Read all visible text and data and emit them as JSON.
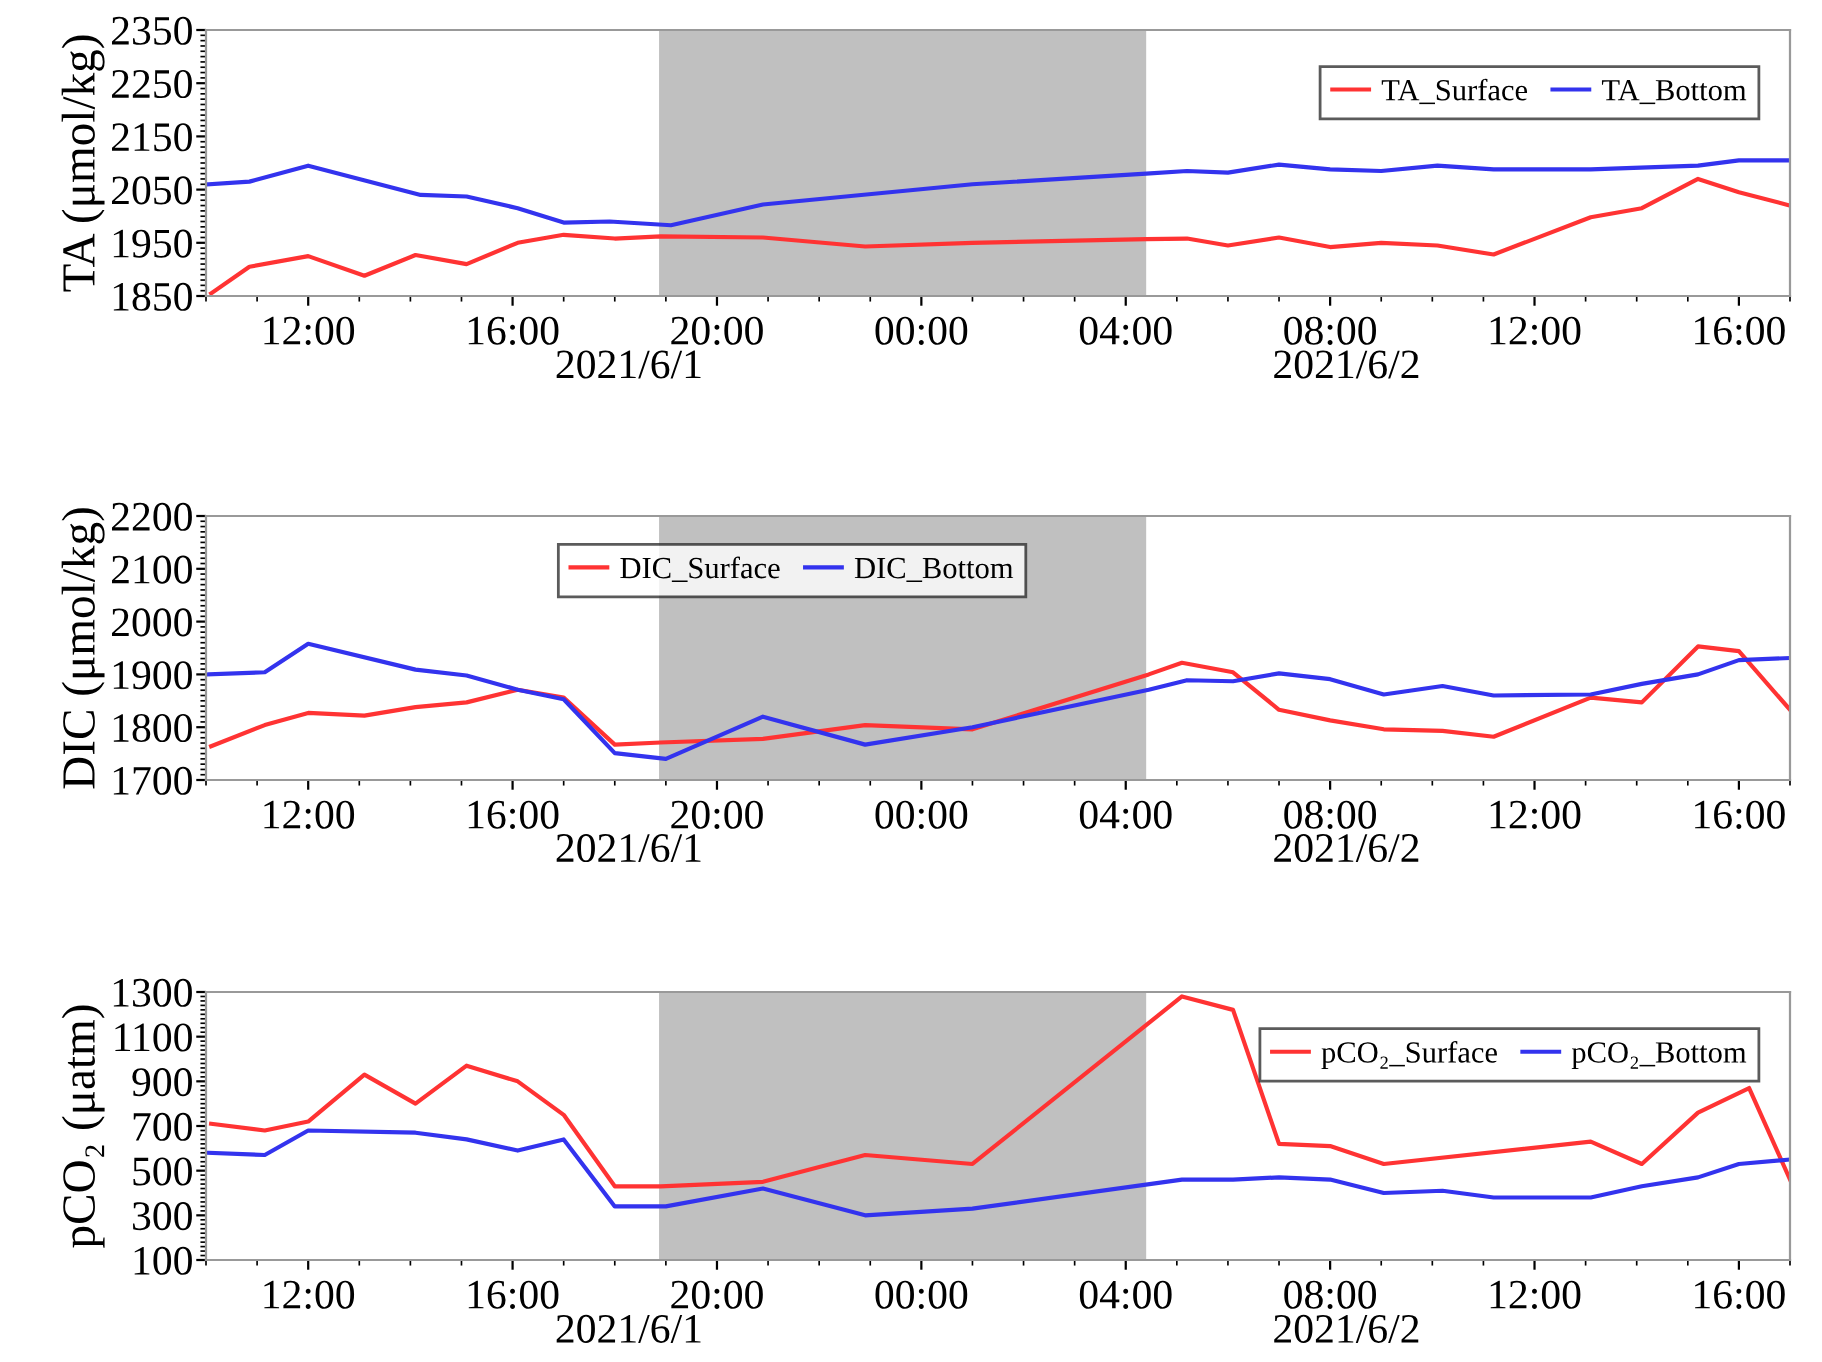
{
  "chart_data": [
    {
      "type": "line",
      "ylabel": "TA (μmol/kg)",
      "xlim": [
        "2021-06-01T10:00",
        "2021-06-02T17:00"
      ],
      "xticks": [
        {
          "value": "2021-06-01T12:00",
          "label": "12:00"
        },
        {
          "value": "2021-06-01T16:00",
          "label": "16:00"
        },
        {
          "value": "2021-06-01T20:00",
          "label": "20:00"
        },
        {
          "value": "2021-06-02T00:00",
          "label": "00:00"
        },
        {
          "value": "2021-06-02T04:00",
          "label": "04:00"
        },
        {
          "value": "2021-06-02T08:00",
          "label": "08:00"
        },
        {
          "value": "2021-06-02T12:00",
          "label": "12:00"
        },
        {
          "value": "2021-06-02T16:00",
          "label": "16:00"
        }
      ],
      "ylim": [
        1850,
        2350
      ],
      "yticks": [
        1850,
        1950,
        2050,
        2150,
        2250,
        2350
      ],
      "grid": false,
      "legend": "top right",
      "annotations": [
        "2021/6/1",
        "2021/6/2"
      ],
      "bands": [
        {
          "axis": "x",
          "from": "2021-06-01T18:52",
          "to": "2021-06-02T04:24",
          "label": null,
          "color": "#c0c0c0"
        }
      ],
      "series": [
        {
          "name": "TA_Surface",
          "color": "#ff3333",
          "x": [
            "2021-06-01T10:06",
            "2021-06-01T10:51",
            "2021-06-01T12:00",
            "2021-06-01T13:06",
            "2021-06-01T14:06",
            "2021-06-01T15:06",
            "2021-06-01T16:06",
            "2021-06-01T17:00",
            "2021-06-01T18:00",
            "2021-06-01T18:54",
            "2021-06-01T20:54",
            "2021-06-01T22:54",
            "2021-06-02T01:00",
            "2021-06-02T04:24",
            "2021-06-02T05:12",
            "2021-06-02T06:00",
            "2021-06-02T07:00",
            "2021-06-02T08:00",
            "2021-06-02T09:00",
            "2021-06-02T10:06",
            "2021-06-02T11:12",
            "2021-06-02T13:06",
            "2021-06-02T14:06",
            "2021-06-02T15:12",
            "2021-06-02T16:00",
            "2021-06-02T17:00"
          ],
          "values": [
            1855,
            1905,
            1925,
            1888,
            1927,
            1910,
            1950,
            1965,
            1958,
            1962,
            1960,
            1943,
            1950,
            1957,
            1958,
            1945,
            1960,
            1942,
            1950,
            1945,
            1928,
            1998,
            2015,
            2070,
            2045,
            2020
          ]
        },
        {
          "name": "TA_Bottom",
          "color": "#3333ee",
          "x": [
            "2021-06-01T10:03",
            "2021-06-01T10:51",
            "2021-06-01T12:00",
            "2021-06-01T14:12",
            "2021-06-01T15:06",
            "2021-06-01T16:06",
            "2021-06-01T17:00",
            "2021-06-01T17:54",
            "2021-06-01T19:06",
            "2021-06-01T20:54",
            "2021-06-02T01:00",
            "2021-06-02T04:24",
            "2021-06-02T05:12",
            "2021-06-02T06:00",
            "2021-06-02T07:00",
            "2021-06-02T08:00",
            "2021-06-02T09:00",
            "2021-06-02T10:06",
            "2021-06-02T11:12",
            "2021-06-02T13:06",
            "2021-06-02T15:12",
            "2021-06-02T16:00",
            "2021-06-02T17:00"
          ],
          "values": [
            2060,
            2065,
            2095,
            2040,
            2037,
            2015,
            1988,
            1990,
            1983,
            2022,
            2060,
            2080,
            2085,
            2082,
            2097,
            2088,
            2085,
            2095,
            2088,
            2088,
            2095,
            2105,
            2105
          ]
        }
      ]
    },
    {
      "type": "line",
      "ylabel": "DIC (μmol/kg)",
      "xlim": [
        "2021-06-01T10:00",
        "2021-06-02T17:00"
      ],
      "xticks": [
        {
          "value": "2021-06-01T12:00",
          "label": "12:00"
        },
        {
          "value": "2021-06-01T16:00",
          "label": "16:00"
        },
        {
          "value": "2021-06-01T20:00",
          "label": "20:00"
        },
        {
          "value": "2021-06-02T00:00",
          "label": "00:00"
        },
        {
          "value": "2021-06-02T04:00",
          "label": "04:00"
        },
        {
          "value": "2021-06-02T08:00",
          "label": "08:00"
        },
        {
          "value": "2021-06-02T12:00",
          "label": "12:00"
        },
        {
          "value": "2021-06-02T16:00",
          "label": "16:00"
        }
      ],
      "ylim": [
        1700,
        2200
      ],
      "yticks": [
        1700,
        1800,
        1900,
        2000,
        2100,
        2200
      ],
      "grid": false,
      "legend": "top",
      "annotations": [
        "2021/6/1",
        "2021/6/2"
      ],
      "bands": [
        {
          "axis": "x",
          "from": "2021-06-01T18:52",
          "to": "2021-06-02T04:24",
          "label": null,
          "color": "#c0c0c0"
        }
      ],
      "series": [
        {
          "name": "DIC_Surface",
          "color": "#ff3333",
          "x": [
            "2021-06-01T10:06",
            "2021-06-01T11:09",
            "2021-06-01T12:00",
            "2021-06-01T13:06",
            "2021-06-01T14:06",
            "2021-06-01T15:06",
            "2021-06-01T16:06",
            "2021-06-01T17:00",
            "2021-06-01T18:00",
            "2021-06-01T18:54",
            "2021-06-01T20:54",
            "2021-06-01T22:54",
            "2021-06-02T01:00",
            "2021-06-02T04:27",
            "2021-06-02T05:06",
            "2021-06-02T06:06",
            "2021-06-02T07:00",
            "2021-06-02T08:00",
            "2021-06-02T09:03",
            "2021-06-02T10:12",
            "2021-06-02T11:12",
            "2021-06-02T13:06",
            "2021-06-02T14:06",
            "2021-06-02T15:12",
            "2021-06-02T16:00",
            "2021-06-02T17:00"
          ],
          "values": [
            1764,
            1804,
            1827,
            1822,
            1838,
            1847,
            1871,
            1856,
            1767,
            1771,
            1778,
            1804,
            1796,
            1900,
            1922,
            1904,
            1833,
            1813,
            1796,
            1793,
            1782,
            1856,
            1847,
            1953,
            1944,
            1833
          ]
        },
        {
          "name": "DIC_Bottom",
          "color": "#3333ee",
          "x": [
            "2021-06-01T10:03",
            "2021-06-01T11:09",
            "2021-06-01T12:00",
            "2021-06-01T14:06",
            "2021-06-01T15:06",
            "2021-06-01T16:06",
            "2021-06-01T17:00",
            "2021-06-01T18:00",
            "2021-06-01T19:00",
            "2021-06-01T20:54",
            "2021-06-01T22:54",
            "2021-06-02T01:00",
            "2021-06-02T04:27",
            "2021-06-02T05:12",
            "2021-06-02T06:06",
            "2021-06-02T07:00",
            "2021-06-02T08:00",
            "2021-06-02T09:03",
            "2021-06-02T10:12",
            "2021-06-02T11:12",
            "2021-06-02T13:06",
            "2021-06-02T14:06",
            "2021-06-02T15:12",
            "2021-06-02T16:00",
            "2021-06-02T17:00"
          ],
          "values": [
            1900,
            1904,
            1958,
            1909,
            1898,
            1871,
            1853,
            1751,
            1740,
            1820,
            1767,
            1800,
            1871,
            1889,
            1887,
            1902,
            1891,
            1862,
            1878,
            1860,
            1862,
            1882,
            1900,
            1927,
            1931
          ]
        }
      ]
    },
    {
      "type": "line",
      "ylabel": "pCO₂ (μatm)",
      "xlim": [
        "2021-06-01T10:00",
        "2021-06-02T17:00"
      ],
      "xticks": [
        {
          "value": "2021-06-01T12:00",
          "label": "12:00"
        },
        {
          "value": "2021-06-01T16:00",
          "label": "16:00"
        },
        {
          "value": "2021-06-01T20:00",
          "label": "20:00"
        },
        {
          "value": "2021-06-02T00:00",
          "label": "00:00"
        },
        {
          "value": "2021-06-02T04:00",
          "label": "04:00"
        },
        {
          "value": "2021-06-02T08:00",
          "label": "08:00"
        },
        {
          "value": "2021-06-02T12:00",
          "label": "12:00"
        },
        {
          "value": "2021-06-02T16:00",
          "label": "16:00"
        }
      ],
      "ylim": [
        100,
        1300
      ],
      "yticks": [
        100,
        300,
        500,
        700,
        900,
        1100,
        1300
      ],
      "grid": false,
      "legend": "top right",
      "annotations": [
        "2021/6/1",
        "2021/6/2"
      ],
      "bands": [
        {
          "axis": "x",
          "from": "2021-06-01T18:52",
          "to": "2021-06-02T04:24",
          "label": null,
          "color": "#c0c0c0"
        }
      ],
      "series": [
        {
          "name": "pCO₂_Surface",
          "color": "#ff3333",
          "x": [
            "2021-06-01T10:06",
            "2021-06-01T11:09",
            "2021-06-01T12:00",
            "2021-06-01T13:06",
            "2021-06-01T14:06",
            "2021-06-01T15:06",
            "2021-06-01T16:06",
            "2021-06-01T17:00",
            "2021-06-01T18:00",
            "2021-06-01T18:54",
            "2021-06-01T20:54",
            "2021-06-01T22:54",
            "2021-06-02T01:00",
            "2021-06-02T05:06",
            "2021-06-02T06:06",
            "2021-06-02T07:00",
            "2021-06-02T08:00",
            "2021-06-02T09:03",
            "2021-06-02T13:06",
            "2021-06-02T14:06",
            "2021-06-02T15:12",
            "2021-06-02T16:12",
            "2021-06-02T17:00"
          ],
          "values": [
            710,
            680,
            720,
            930,
            800,
            970,
            900,
            750,
            430,
            430,
            450,
            570,
            530,
            1280,
            1220,
            620,
            610,
            530,
            630,
            530,
            760,
            870,
            460
          ]
        },
        {
          "name": "pCO₂_Bottom",
          "color": "#3333ee",
          "x": [
            "2021-06-01T10:03",
            "2021-06-01T11:09",
            "2021-06-01T12:00",
            "2021-06-01T14:06",
            "2021-06-01T15:06",
            "2021-06-01T16:06",
            "2021-06-01T17:00",
            "2021-06-01T18:00",
            "2021-06-01T19:00",
            "2021-06-01T20:54",
            "2021-06-01T22:54",
            "2021-06-02T01:00",
            "2021-06-02T05:06",
            "2021-06-02T06:06",
            "2021-06-02T07:00",
            "2021-06-02T08:00",
            "2021-06-02T09:03",
            "2021-06-02T10:12",
            "2021-06-02T11:12",
            "2021-06-02T13:06",
            "2021-06-02T14:06",
            "2021-06-02T15:12",
            "2021-06-02T16:00",
            "2021-06-02T17:00"
          ],
          "values": [
            580,
            570,
            680,
            670,
            640,
            590,
            640,
            340,
            340,
            420,
            300,
            330,
            460,
            460,
            470,
            460,
            400,
            410,
            380,
            380,
            430,
            470,
            530,
            550
          ]
        }
      ]
    }
  ]
}
